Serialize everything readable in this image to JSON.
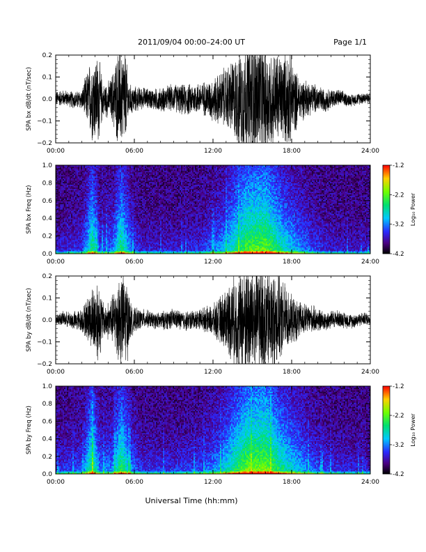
{
  "header": {
    "title": "2011/09/04  00:00–24:00 UT",
    "page": "Page 1/1"
  },
  "footer": {
    "xlabel": "Universal Time (hh:mm)"
  },
  "chart_data": [
    {
      "type": "line",
      "name": "SPA bx waveform",
      "ylabel": "SPA bx dB/dt (nT/sec)",
      "xlim": [
        0,
        24
      ],
      "ylim": [
        -0.2,
        0.2
      ],
      "xticks": [
        "00:00",
        "06:00",
        "12:00",
        "18:00",
        "24:00"
      ],
      "yticks": [
        "−0.2",
        "−0.1",
        "0.0",
        "0.1",
        "0.2"
      ],
      "yticks_values": [
        -0.2,
        -0.1,
        0.0,
        0.1,
        0.2
      ],
      "envelope_hours": [
        0,
        1,
        2,
        2.8,
        3.3,
        3.6,
        4.2,
        4.8,
        5.3,
        5.6,
        6.3,
        7,
        8,
        9,
        10,
        11,
        11.5,
        12.2,
        13,
        13.7,
        14.5,
        15.5,
        16.5,
        17.3,
        17.8,
        18.5,
        19.5,
        21,
        22.5,
        24
      ],
      "envelope_amplitude": [
        0.04,
        0.04,
        0.05,
        0.22,
        0.22,
        0.08,
        0.1,
        0.25,
        0.25,
        0.08,
        0.06,
        0.05,
        0.06,
        0.07,
        0.08,
        0.08,
        0.09,
        0.12,
        0.16,
        0.22,
        0.3,
        0.3,
        0.25,
        0.22,
        0.25,
        0.12,
        0.08,
        0.05,
        0.03,
        0.03
      ]
    },
    {
      "type": "heatmap",
      "name": "SPA bx spectrogram",
      "ylabel": "SPA bx Freq (Hz)",
      "xlim": [
        0,
        24
      ],
      "ylim": [
        0,
        1
      ],
      "xticks": [
        "00:00",
        "06:00",
        "12:00",
        "18:00",
        "24:00"
      ],
      "yticks": [
        "0.0",
        "0.2",
        "0.4",
        "0.6",
        "0.8",
        "1.0"
      ],
      "yticks_values": [
        0,
        0.2,
        0.4,
        0.6,
        0.8,
        1.0
      ],
      "colorbar": {
        "label": "Log₁₀ Power",
        "range": [
          -4.2,
          -1.2
        ],
        "ticks": [
          "-1.2",
          "-2.2",
          "-3.2",
          "-4.2"
        ],
        "ticks_values": [
          -1.2,
          -2.2,
          -3.2,
          -4.2
        ]
      },
      "activity_hours": [
        0,
        2,
        2.8,
        3.4,
        4.3,
        5.0,
        5.8,
        6.5,
        9,
        11,
        12.5,
        13.5,
        14.5,
        16,
        17,
        18,
        19.5,
        21,
        24
      ],
      "activity_level": [
        0.15,
        0.2,
        0.65,
        0.25,
        0.3,
        0.65,
        0.3,
        0.15,
        0.15,
        0.2,
        0.35,
        0.55,
        0.75,
        0.8,
        0.6,
        0.45,
        0.25,
        0.15,
        0.12
      ]
    },
    {
      "type": "line",
      "name": "SPA by waveform",
      "ylabel": "SPA by dB/dt (nT/sec)",
      "xlim": [
        0,
        24
      ],
      "ylim": [
        -0.2,
        0.2
      ],
      "xticks": [
        "00:00",
        "06:00",
        "12:00",
        "18:00",
        "24:00"
      ],
      "yticks": [
        "−0.2",
        "−0.1",
        "0.0",
        "0.1",
        "0.2"
      ],
      "yticks_values": [
        -0.2,
        -0.1,
        0.0,
        0.1,
        0.2
      ],
      "envelope_hours": [
        0,
        1,
        2,
        2.5,
        3.2,
        3.7,
        4.3,
        4.9,
        5.4,
        5.8,
        6.5,
        7.5,
        8.5,
        10,
        11,
        12,
        12.8,
        13.5,
        14.5,
        15.5,
        16.5,
        17.3,
        18,
        19,
        20.5,
        22,
        24
      ],
      "envelope_amplitude": [
        0.03,
        0.04,
        0.06,
        0.12,
        0.22,
        0.08,
        0.12,
        0.25,
        0.22,
        0.07,
        0.05,
        0.04,
        0.05,
        0.05,
        0.05,
        0.08,
        0.14,
        0.22,
        0.3,
        0.3,
        0.26,
        0.2,
        0.12,
        0.08,
        0.05,
        0.04,
        0.03
      ]
    },
    {
      "type": "heatmap",
      "name": "SPA by spectrogram",
      "ylabel": "SPA by Freq (Hz)",
      "xlim": [
        0,
        24
      ],
      "ylim": [
        0,
        1
      ],
      "xticks": [
        "00:00",
        "06:00",
        "12:00",
        "18:00",
        "24:00"
      ],
      "yticks": [
        "0.0",
        "0.2",
        "0.4",
        "0.6",
        "0.8",
        "1.0"
      ],
      "yticks_values": [
        0,
        0.2,
        0.4,
        0.6,
        0.8,
        1.0
      ],
      "colorbar": {
        "label": "Log₁₀ Power",
        "range": [
          -4.2,
          -1.2
        ],
        "ticks": [
          "-1.2",
          "-2.2",
          "-3.2",
          "-4.2"
        ],
        "ticks_values": [
          -1.2,
          -2.2,
          -3.2,
          -4.2
        ]
      },
      "activity_hours": [
        0,
        2,
        2.8,
        3.4,
        4.3,
        5.0,
        5.8,
        6.5,
        9,
        11,
        12.5,
        13.5,
        14.5,
        16,
        17,
        18,
        19.5,
        21,
        24
      ],
      "activity_level": [
        0.2,
        0.25,
        0.7,
        0.3,
        0.35,
        0.7,
        0.35,
        0.2,
        0.2,
        0.25,
        0.4,
        0.6,
        0.8,
        0.85,
        0.65,
        0.5,
        0.3,
        0.2,
        0.15
      ]
    }
  ]
}
